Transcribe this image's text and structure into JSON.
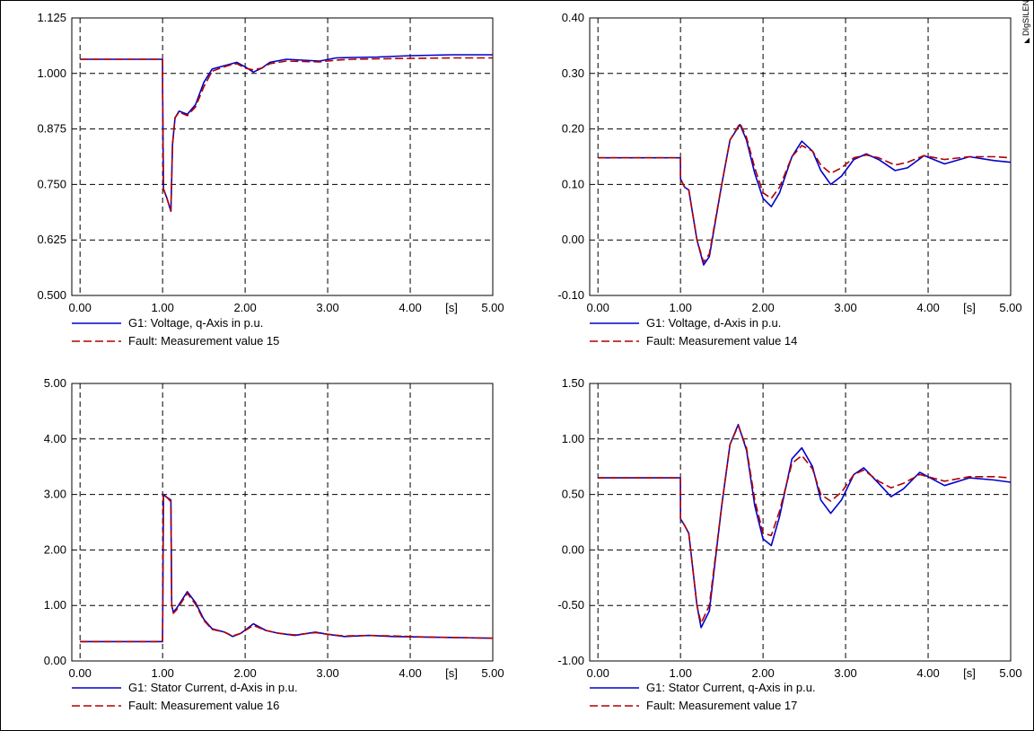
{
  "brand": "DIgSILENT",
  "x_unit_label": "[s]",
  "chart_data": [
    {
      "type": "line",
      "xlim": [
        0,
        5
      ],
      "ylim": [
        0.5,
        1.125
      ],
      "xticks": [
        "0.00",
        "1.00",
        "2.00",
        "3.00",
        "4.00",
        "5.00"
      ],
      "yticks": [
        "0.500",
        "0.625",
        "0.750",
        "0.875",
        "1.000",
        "1.125"
      ],
      "grid": true,
      "legend_position": "bottom",
      "series": [
        {
          "name": "G1: Voltage, q-Axis in p.u.",
          "color": "#0000cc",
          "style": "solid",
          "x": [
            0,
            0.999,
            1.0,
            1.01,
            1.05,
            1.1,
            1.12,
            1.15,
            1.2,
            1.3,
            1.4,
            1.5,
            1.6,
            1.7,
            1.8,
            1.9,
            2.0,
            2.1,
            2.2,
            2.3,
            2.5,
            2.7,
            2.9,
            3.1,
            3.3,
            3.6,
            4.0,
            4.5,
            5.0
          ],
          "y": [
            1.032,
            1.032,
            0.96,
            0.74,
            0.72,
            0.69,
            0.84,
            0.9,
            0.915,
            0.908,
            0.93,
            0.98,
            1.01,
            1.015,
            1.02,
            1.025,
            1.015,
            1.003,
            1.012,
            1.025,
            1.032,
            1.03,
            1.028,
            1.035,
            1.036,
            1.037,
            1.04,
            1.042,
            1.042
          ]
        },
        {
          "name": "Fault: Measurement value 15",
          "color": "#b00000",
          "style": "dashed",
          "x": [
            0,
            0.999,
            1.0,
            1.01,
            1.05,
            1.1,
            1.12,
            1.15,
            1.2,
            1.3,
            1.4,
            1.5,
            1.6,
            1.7,
            1.8,
            1.9,
            2.0,
            2.1,
            2.2,
            2.3,
            2.5,
            2.7,
            2.9,
            3.1,
            3.3,
            3.6,
            4.0,
            4.5,
            5.0
          ],
          "y": [
            1.032,
            1.032,
            0.95,
            0.74,
            0.72,
            0.69,
            0.84,
            0.9,
            0.913,
            0.905,
            0.925,
            0.97,
            1.005,
            1.012,
            1.018,
            1.022,
            1.012,
            1.008,
            1.012,
            1.022,
            1.028,
            1.027,
            1.026,
            1.03,
            1.032,
            1.033,
            1.034,
            1.035,
            1.035
          ]
        }
      ]
    },
    {
      "type": "line",
      "xlim": [
        0,
        5
      ],
      "ylim": [
        -0.1,
        0.4
      ],
      "xticks": [
        "0.00",
        "1.00",
        "2.00",
        "3.00",
        "4.00",
        "5.00"
      ],
      "yticks": [
        "-0.10",
        "0.00",
        "0.10",
        "0.20",
        "0.30",
        "0.40"
      ],
      "grid": true,
      "legend_position": "bottom",
      "series": [
        {
          "name": "G1: Voltage, d-Axis in p.u.",
          "color": "#0000cc",
          "style": "solid",
          "x": [
            0,
            0.999,
            1.0,
            1.05,
            1.1,
            1.2,
            1.28,
            1.35,
            1.5,
            1.6,
            1.72,
            1.8,
            1.9,
            2.0,
            2.1,
            2.2,
            2.35,
            2.47,
            2.6,
            2.7,
            2.82,
            2.95,
            3.1,
            3.25,
            3.4,
            3.6,
            3.75,
            3.95,
            4.2,
            4.5,
            4.8,
            5.0
          ],
          "y": [
            0.148,
            0.148,
            0.11,
            0.095,
            0.09,
            0.0,
            -0.045,
            -0.03,
            0.1,
            0.18,
            0.208,
            0.18,
            0.12,
            0.075,
            0.06,
            0.085,
            0.15,
            0.178,
            0.16,
            0.125,
            0.1,
            0.115,
            0.145,
            0.155,
            0.145,
            0.125,
            0.13,
            0.152,
            0.137,
            0.15,
            0.143,
            0.14
          ]
        },
        {
          "name": "Fault: Measurement value 14",
          "color": "#b00000",
          "style": "dashed",
          "x": [
            0,
            0.999,
            1.0,
            1.05,
            1.1,
            1.2,
            1.28,
            1.35,
            1.5,
            1.6,
            1.72,
            1.8,
            1.9,
            2.0,
            2.1,
            2.2,
            2.35,
            2.47,
            2.6,
            2.7,
            2.82,
            2.95,
            3.1,
            3.25,
            3.4,
            3.6,
            3.75,
            3.95,
            4.2,
            4.5,
            4.8,
            5.0
          ],
          "y": [
            0.148,
            0.148,
            0.11,
            0.095,
            0.09,
            0.0,
            -0.04,
            -0.025,
            0.1,
            0.18,
            0.21,
            0.185,
            0.13,
            0.085,
            0.075,
            0.095,
            0.15,
            0.17,
            0.16,
            0.135,
            0.12,
            0.13,
            0.148,
            0.153,
            0.148,
            0.135,
            0.14,
            0.152,
            0.145,
            0.15,
            0.15,
            0.148
          ]
        }
      ]
    },
    {
      "type": "line",
      "xlim": [
        0,
        5
      ],
      "ylim": [
        0,
        5
      ],
      "xticks": [
        "0.00",
        "1.00",
        "2.00",
        "3.00",
        "4.00",
        "5.00"
      ],
      "yticks": [
        "0.00",
        "1.00",
        "2.00",
        "3.00",
        "4.00",
        "5.00"
      ],
      "grid": true,
      "legend_position": "bottom",
      "series": [
        {
          "name": "G1: Stator Current, d-Axis in p.u.",
          "color": "#0000cc",
          "style": "solid",
          "x": [
            0,
            0.999,
            1.0,
            1.01,
            1.05,
            1.1,
            1.11,
            1.13,
            1.17,
            1.3,
            1.4,
            1.5,
            1.6,
            1.75,
            1.85,
            1.95,
            2.1,
            2.25,
            2.4,
            2.6,
            2.85,
            3.0,
            3.2,
            3.5,
            3.8,
            4.2,
            4.6,
            5.0
          ],
          "y": [
            0.35,
            0.35,
            0.6,
            3.0,
            2.95,
            2.9,
            1.0,
            0.88,
            0.95,
            1.25,
            1.05,
            0.75,
            0.58,
            0.52,
            0.44,
            0.5,
            0.67,
            0.55,
            0.5,
            0.46,
            0.52,
            0.48,
            0.44,
            0.46,
            0.44,
            0.43,
            0.42,
            0.41
          ]
        },
        {
          "name": "Fault: Measurement value 16",
          "color": "#b00000",
          "style": "dashed",
          "x": [
            0,
            0.999,
            1.0,
            1.01,
            1.05,
            1.1,
            1.11,
            1.13,
            1.17,
            1.3,
            1.4,
            1.5,
            1.6,
            1.75,
            1.85,
            1.95,
            2.1,
            2.25,
            2.4,
            2.6,
            2.85,
            3.0,
            3.2,
            3.5,
            3.8,
            4.2,
            4.6,
            5.0
          ],
          "y": [
            0.35,
            0.35,
            0.6,
            3.0,
            2.95,
            2.87,
            1.0,
            0.86,
            0.92,
            1.22,
            1.02,
            0.73,
            0.57,
            0.52,
            0.45,
            0.5,
            0.64,
            0.55,
            0.5,
            0.47,
            0.51,
            0.48,
            0.45,
            0.46,
            0.45,
            0.43,
            0.42,
            0.41
          ]
        }
      ]
    },
    {
      "type": "line",
      "xlim": [
        0,
        5
      ],
      "ylim": [
        -1,
        1.5
      ],
      "xticks": [
        "0.00",
        "1.00",
        "2.00",
        "3.00",
        "4.00",
        "5.00"
      ],
      "yticks": [
        "-1.00",
        "-0.50",
        "0.00",
        "0.50",
        "1.00",
        "1.50"
      ],
      "grid": true,
      "legend_position": "bottom",
      "series": [
        {
          "name": "G1: Stator Current, q-Axis in p.u.",
          "color": "#0000cc",
          "style": "solid",
          "x": [
            0,
            0.999,
            1.0,
            1.05,
            1.1,
            1.2,
            1.25,
            1.35,
            1.5,
            1.6,
            1.7,
            1.8,
            1.9,
            2.0,
            2.1,
            2.2,
            2.35,
            2.47,
            2.6,
            2.7,
            2.82,
            2.95,
            3.1,
            3.22,
            3.4,
            3.55,
            3.7,
            3.9,
            4.2,
            4.5,
            4.8,
            5.0
          ],
          "y": [
            0.65,
            0.65,
            0.28,
            0.22,
            0.15,
            -0.5,
            -0.7,
            -0.55,
            0.4,
            0.95,
            1.13,
            0.9,
            0.4,
            0.1,
            0.04,
            0.3,
            0.82,
            0.92,
            0.75,
            0.45,
            0.33,
            0.45,
            0.68,
            0.74,
            0.6,
            0.48,
            0.55,
            0.7,
            0.58,
            0.65,
            0.63,
            0.61
          ]
        },
        {
          "name": "Fault: Measurement value 17",
          "color": "#b00000",
          "style": "dashed",
          "x": [
            0,
            0.999,
            1.0,
            1.05,
            1.1,
            1.2,
            1.25,
            1.35,
            1.5,
            1.6,
            1.7,
            1.8,
            1.9,
            2.0,
            2.1,
            2.2,
            2.35,
            2.47,
            2.6,
            2.7,
            2.82,
            2.95,
            3.1,
            3.22,
            3.4,
            3.55,
            3.7,
            3.9,
            4.2,
            4.5,
            4.8,
            5.0
          ],
          "y": [
            0.65,
            0.65,
            0.28,
            0.22,
            0.15,
            -0.5,
            -0.66,
            -0.5,
            0.4,
            0.95,
            1.12,
            0.92,
            0.45,
            0.15,
            0.13,
            0.35,
            0.78,
            0.85,
            0.73,
            0.5,
            0.44,
            0.52,
            0.68,
            0.72,
            0.62,
            0.56,
            0.6,
            0.68,
            0.62,
            0.66,
            0.66,
            0.65
          ]
        }
      ]
    }
  ]
}
